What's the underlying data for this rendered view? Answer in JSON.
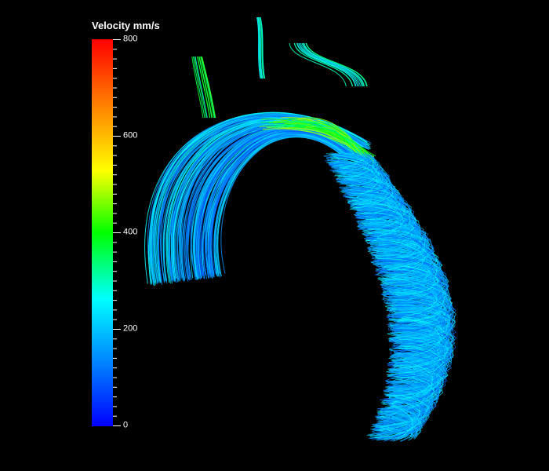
{
  "legend": {
    "title": "Velocity mm/s",
    "min": 0,
    "max": 800,
    "ticks": [
      {
        "value": 800,
        "label": "800"
      },
      {
        "value": 600,
        "label": "600"
      },
      {
        "value": 400,
        "label": "400"
      },
      {
        "value": 200,
        "label": "200"
      },
      {
        "value": 0,
        "label": "0"
      }
    ],
    "minor_tick_count": 40,
    "colormap": [
      "#0000ff",
      "#0080ff",
      "#00ffff",
      "#00ff00",
      "#ffff00",
      "#ff8000",
      "#ff0000"
    ]
  },
  "scene": {
    "background": "#000000",
    "subject": "streamlines-aortic-arch"
  }
}
